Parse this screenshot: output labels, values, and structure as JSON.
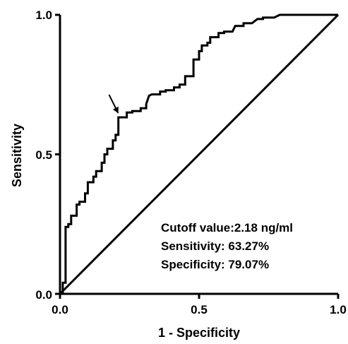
{
  "chart_data": {
    "type": "line",
    "xlabel": "1 - Specificity",
    "ylabel": "Sensitivity",
    "xlim": [
      0,
      1
    ],
    "ylim": [
      0,
      1
    ],
    "x_ticks": [
      "0.0",
      "0.5",
      "1.0"
    ],
    "y_ticks": [
      "0.0",
      "0.5",
      "1.0"
    ],
    "grid": false,
    "series": [
      {
        "type": "step",
        "x": [
          0.0,
          0.01,
          0.01,
          0.02,
          0.02,
          0.03,
          0.03,
          0.04,
          0.04,
          0.06,
          0.06,
          0.07,
          0.07,
          0.09,
          0.09,
          0.1,
          0.1,
          0.12,
          0.12,
          0.13,
          0.13,
          0.15,
          0.15,
          0.16,
          0.16,
          0.17,
          0.17,
          0.19,
          0.19,
          0.2,
          0.2,
          0.21,
          0.21,
          0.24,
          0.24,
          0.26,
          0.26,
          0.29,
          0.29,
          0.31,
          0.31,
          0.32,
          0.33,
          0.36,
          0.36,
          0.38,
          0.38,
          0.41,
          0.41,
          0.43,
          0.43,
          0.45,
          0.45,
          0.48,
          0.48,
          0.5,
          0.5,
          0.51,
          0.51,
          0.53,
          0.53,
          0.54,
          0.54,
          0.57,
          0.57,
          0.59,
          0.59,
          0.62,
          0.63,
          0.66,
          0.66,
          0.69,
          0.71,
          0.73,
          0.73,
          0.77,
          0.79,
          0.79,
          0.81,
          0.81,
          1.0
        ],
        "y": [
          0.0,
          0.0,
          0.04,
          0.04,
          0.24,
          0.24,
          0.25,
          0.25,
          0.28,
          0.28,
          0.32,
          0.32,
          0.33,
          0.33,
          0.36,
          0.36,
          0.4,
          0.4,
          0.42,
          0.42,
          0.44,
          0.44,
          0.47,
          0.47,
          0.5,
          0.5,
          0.52,
          0.52,
          0.55,
          0.55,
          0.57,
          0.57,
          0.6327,
          0.6327,
          0.65,
          0.65,
          0.655,
          0.655,
          0.665,
          0.665,
          0.68,
          0.71,
          0.715,
          0.715,
          0.725,
          0.725,
          0.73,
          0.73,
          0.74,
          0.74,
          0.75,
          0.75,
          0.78,
          0.78,
          0.84,
          0.84,
          0.87,
          0.87,
          0.89,
          0.89,
          0.9,
          0.9,
          0.92,
          0.92,
          0.935,
          0.935,
          0.94,
          0.94,
          0.96,
          0.96,
          0.97,
          0.97,
          0.985,
          0.985,
          0.99,
          0.99,
          1.0,
          1.0,
          1.0,
          1.0,
          1.0
        ]
      },
      {
        "type": "reference",
        "x": [
          0,
          1
        ],
        "y": [
          0,
          1
        ]
      }
    ],
    "cutoff_point": {
      "x": 0.2093,
      "y": 0.6327
    },
    "annotations": [
      "Cutoff value:2.18 ng/ml",
      "Sensitivity: 63.27%",
      "Specificity: 79.07%"
    ]
  }
}
